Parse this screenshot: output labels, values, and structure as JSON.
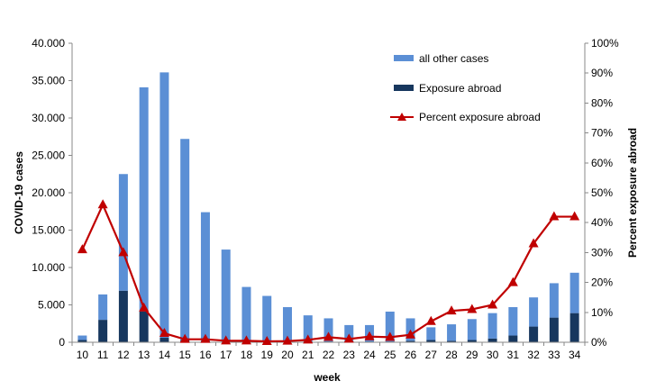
{
  "chart_data": {
    "type": "bar",
    "subtype": "stacked-bar-with-line-secondary-axis",
    "categories": [
      "10",
      "11",
      "12",
      "13",
      "14",
      "15",
      "16",
      "17",
      "18",
      "19",
      "20",
      "21",
      "22",
      "23",
      "24",
      "25",
      "26",
      "27",
      "28",
      "29",
      "30",
      "31",
      "32",
      "33",
      "34"
    ],
    "series": [
      {
        "name": "all other cases",
        "kind": "bar-stack-top",
        "axis": "left",
        "values": [
          600,
          3400,
          15600,
          30000,
          35500,
          26900,
          17200,
          12300,
          7300,
          6100,
          4600,
          3500,
          3100,
          2200,
          2200,
          4000,
          3000,
          1700,
          2200,
          2800,
          3400,
          3800,
          3900,
          4600,
          5400
        ]
      },
      {
        "name": "Exposure abroad",
        "kind": "bar-stack-bottom",
        "axis": "left",
        "values": [
          300,
          3000,
          6900,
          4100,
          600,
          300,
          200,
          100,
          100,
          100,
          100,
          100,
          100,
          100,
          100,
          100,
          200,
          300,
          200,
          300,
          500,
          900,
          2100,
          3300,
          3900
        ]
      },
      {
        "name": "Percent exposure abroad",
        "kind": "line",
        "axis": "right",
        "values": [
          31,
          46,
          30,
          11.5,
          3,
          1,
          1,
          0.5,
          0.5,
          0.3,
          0.4,
          0.8,
          1.7,
          1.1,
          1.9,
          1.7,
          2.5,
          7,
          10.5,
          11,
          12.5,
          20,
          33,
          42,
          42
        ]
      }
    ],
    "xlabel": "week",
    "ylabel": "COVID-19 cases",
    "y2label": "Percent exposure abroad",
    "ylim": [
      0,
      40000
    ],
    "y2lim": [
      0,
      100
    ],
    "yticks": [
      "0",
      "5.000",
      "10.000",
      "15.000",
      "20.000",
      "25.000",
      "30.000",
      "35.000",
      "40.000"
    ],
    "y2ticks": [
      "0%",
      "10%",
      "20%",
      "30%",
      "40%",
      "50%",
      "60%",
      "70%",
      "80%",
      "90%",
      "100%"
    ],
    "grid": false,
    "legend_position": "top-right",
    "colors": {
      "all other cases": "#5B8FD5",
      "Exposure abroad": "#17375E",
      "Percent exposure abroad": "#C00000"
    }
  }
}
